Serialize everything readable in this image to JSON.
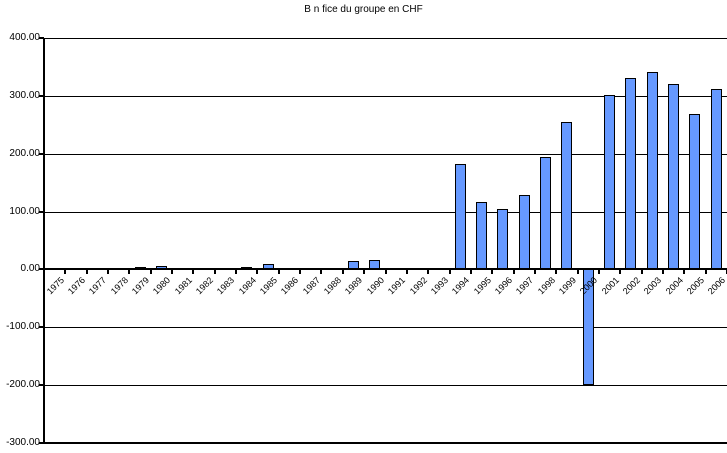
{
  "chart_data": {
    "type": "bar",
    "title": "B n fice du groupe en CHF",
    "xlabel": "",
    "ylabel": "",
    "ylim": [
      -300,
      400
    ],
    "ytick_step": 100,
    "grid": true,
    "legend": "none",
    "bar_fill_color": "#6699FF",
    "bar_border_color": "#000000",
    "axis_color": "#000000",
    "yticks": [
      {
        "value": 400,
        "label": "400.00"
      },
      {
        "value": 300,
        "label": "300.00"
      },
      {
        "value": 200,
        "label": "200.00"
      },
      {
        "value": 100,
        "label": "100.00"
      },
      {
        "value": 0,
        "label": "0.00"
      },
      {
        "value": -100,
        "label": "-100.00"
      },
      {
        "value": -200,
        "label": "-200.00"
      },
      {
        "value": -300,
        "label": "-300.00"
      }
    ],
    "categories": [
      "1975",
      "1976",
      "1977",
      "1978",
      "1979",
      "1980",
      "1981",
      "1982",
      "1983",
      "1984",
      "1985",
      "1986",
      "1987",
      "1988",
      "1989",
      "1990",
      "1991",
      "1992",
      "1993",
      "1994",
      "1995",
      "1996",
      "1997",
      "1998",
      "1999",
      "2000",
      "2001",
      "2002",
      "2003",
      "2004",
      "2005",
      "2006"
    ],
    "values": [
      2,
      0,
      0,
      0,
      5,
      6,
      0,
      0,
      0,
      5,
      9,
      0,
      0,
      0,
      14,
      17,
      0,
      0,
      0,
      183,
      116,
      105,
      128,
      194,
      255,
      -200,
      302,
      331,
      341,
      321,
      269,
      312
    ]
  }
}
